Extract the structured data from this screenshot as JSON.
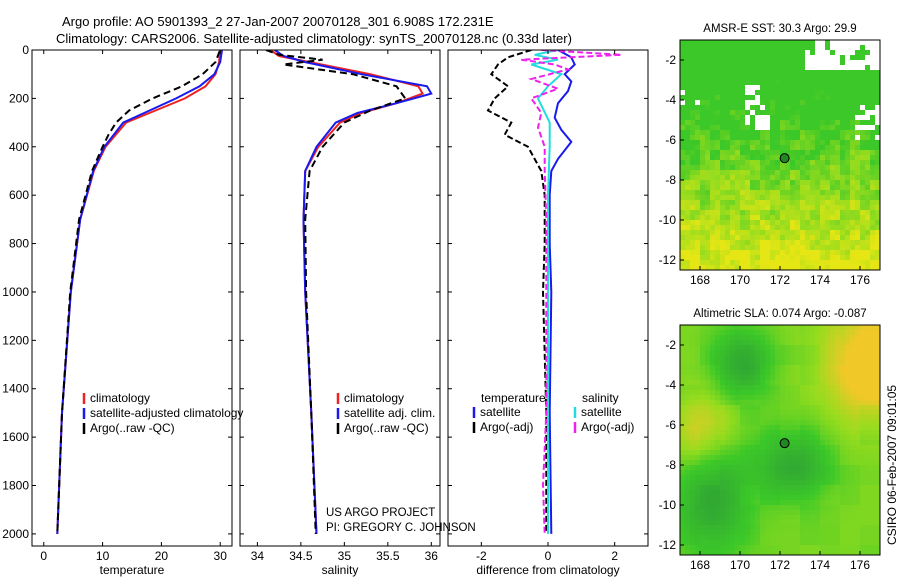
{
  "figure": {
    "title_line1": "Argo profile: AO 5901393_2 27-Jan-2007 20070128_301 6.908S 172.231E",
    "title_line2": "Climatology: CARS2006. Satellite-adjusted climatology: synTS_20070128.nc (0.33d later)",
    "credit": "CSIRO 06-Feb-2007 09:01:05",
    "project_line1": "US ARGO PROJECT",
    "project_line2": "PI: GREGORY C. JOHNSON"
  },
  "colors": {
    "climatology": "#ee2222",
    "satellite": "#1a1aee",
    "argo": "#000000",
    "salinity_satellite": "#22dddd",
    "salinity_argo": "#ee22ee",
    "map_marker": "#228822"
  },
  "chart_data": [
    {
      "type": "line",
      "id": "temperature",
      "xlabel": "temperature",
      "xlim": [
        -2,
        32
      ],
      "ylim": [
        0,
        2050
      ],
      "xticks": [
        0,
        10,
        20,
        30
      ],
      "yticks": [
        0,
        200,
        400,
        600,
        800,
        1000,
        1200,
        1400,
        1600,
        1800,
        2000
      ],
      "xtick_labels": [
        "0",
        "10",
        "20",
        "30"
      ],
      "ytick_labels": [
        "0",
        "200",
        "400",
        "600",
        "800",
        "1000",
        "1200",
        "1400",
        "1600",
        "1800",
        "2000"
      ],
      "legend": [
        "climatology",
        "satellite-adjusted climatology",
        "Argo(..raw -QC)"
      ],
      "series": [
        {
          "name": "climatology",
          "color": "#ee2222",
          "dash": "",
          "depth": [
            0,
            50,
            100,
            150,
            200,
            250,
            300,
            400,
            500,
            700,
            1000,
            1500,
            2000
          ],
          "values": [
            30.0,
            29.8,
            29.2,
            27.5,
            24,
            19,
            14,
            10.5,
            8.5,
            6.2,
            4.6,
            3.1,
            2.3
          ]
        },
        {
          "name": "satellite-adjusted climatology",
          "color": "#1a1aee",
          "dash": "",
          "depth": [
            0,
            50,
            100,
            150,
            200,
            250,
            300,
            400,
            500,
            700,
            1000,
            1500,
            2000
          ],
          "values": [
            30.3,
            30.0,
            29.0,
            26.5,
            22.5,
            18,
            13.5,
            10.3,
            8.4,
            6.2,
            4.6,
            3.1,
            2.3
          ]
        },
        {
          "name": "Argo(..raw -QC)",
          "color": "#000000",
          "dash": "7,4",
          "depth": [
            5,
            50,
            100,
            150,
            200,
            250,
            300,
            350,
            400,
            500,
            700,
            1000,
            1500,
            2000
          ],
          "values": [
            29.9,
            29.2,
            27,
            23.5,
            18.5,
            14.5,
            12.3,
            11.0,
            10.0,
            8.2,
            6.0,
            4.5,
            3.1,
            2.3
          ]
        }
      ]
    },
    {
      "type": "line",
      "id": "salinity",
      "xlabel": "salinity",
      "xlim": [
        33.8,
        36.1
      ],
      "ylim": [
        0,
        2050
      ],
      "xticks": [
        34,
        34.5,
        35,
        35.5,
        36
      ],
      "yticks": [
        0,
        200,
        400,
        600,
        800,
        1000,
        1200,
        1400,
        1600,
        1800,
        2000
      ],
      "xtick_labels": [
        "34",
        "34.5",
        "35",
        "35.5",
        "36"
      ],
      "legend": [
        "climatology",
        "satellite adj. clim.",
        "Argo(..raw -QC)"
      ],
      "series": [
        {
          "name": "climatology",
          "color": "#ee2222",
          "dash": "",
          "depth": [
            0,
            25,
            50,
            100,
            150,
            180,
            220,
            260,
            300,
            400,
            500,
            700,
            1000,
            1500,
            2000
          ],
          "values": [
            34.15,
            34.25,
            34.6,
            35.3,
            35.85,
            35.9,
            35.6,
            35.2,
            34.95,
            34.7,
            34.55,
            34.53,
            34.55,
            34.62,
            34.68
          ]
        },
        {
          "name": "satellite adj. clim.",
          "color": "#1a1aee",
          "dash": "",
          "depth": [
            0,
            25,
            50,
            100,
            150,
            180,
            220,
            260,
            300,
            400,
            500,
            700,
            1000,
            1500,
            2000
          ],
          "values": [
            34.2,
            34.3,
            34.55,
            35.2,
            35.95,
            36.0,
            35.6,
            35.15,
            34.9,
            34.68,
            34.55,
            34.53,
            34.55,
            34.62,
            34.68
          ]
        },
        {
          "name": "Argo(..raw -QC)",
          "color": "#000000",
          "dash": "7,4",
          "depth": [
            0,
            20,
            40,
            60,
            100,
            150,
            200,
            250,
            300,
            400,
            500,
            700,
            1000,
            1500,
            2000
          ],
          "values": [
            34.1,
            34.25,
            34.75,
            34.3,
            35.1,
            35.6,
            35.7,
            35.3,
            35.0,
            34.75,
            34.6,
            34.55,
            34.56,
            34.62,
            34.67
          ]
        }
      ]
    },
    {
      "type": "line",
      "id": "difference",
      "xlabel": "difference from climatology",
      "xlim": [
        -3.0,
        3.0
      ],
      "ylim": [
        0,
        2050
      ],
      "xticks": [
        -2,
        0,
        2
      ],
      "yticks": [
        0,
        200,
        400,
        600,
        800,
        1000,
        1200,
        1400,
        1600,
        1800,
        2000
      ],
      "xtick_labels": [
        "-2",
        "0",
        "2"
      ],
      "legend_left_title": "temperature",
      "legend_left": [
        "satellite",
        "Argo(-adj)"
      ],
      "legend_right_title": "salinity",
      "legend_right": [
        "satellite",
        "Argo(-adj)"
      ],
      "series": [
        {
          "name": "temperature satellite",
          "color": "#1a1aee",
          "dash": "",
          "depth": [
            0,
            30,
            60,
            100,
            130,
            170,
            220,
            280,
            330,
            380,
            450,
            500,
            600,
            800,
            1000,
            1500,
            2000
          ],
          "values": [
            0.3,
            0.7,
            0.8,
            0.5,
            0.7,
            0.6,
            0.3,
            0.2,
            0.4,
            0.7,
            0.3,
            0.1,
            0.05,
            0.05,
            0.1,
            0.05,
            0.1
          ]
        },
        {
          "name": "temperature Argo(-adj)",
          "color": "#000000",
          "dash": "6,3",
          "depth": [
            0,
            30,
            60,
            100,
            150,
            200,
            250,
            300,
            350,
            400,
            500,
            600,
            800,
            1000,
            1500,
            2000
          ],
          "values": [
            -0.5,
            -1.2,
            -1.5,
            -1.7,
            -1.2,
            -1.6,
            -1.8,
            -1.1,
            -1.3,
            -0.6,
            -0.2,
            -0.1,
            -0.1,
            -0.15,
            -0.05,
            -0.05
          ]
        },
        {
          "name": "salinity satellite",
          "color": "#22dddd",
          "dash": "",
          "depth": [
            0,
            20,
            40,
            60,
            100,
            150,
            200,
            300,
            400,
            600,
            1000,
            1500,
            2000
          ],
          "values": [
            0.3,
            -0.4,
            0.3,
            -0.5,
            0.4,
            0.0,
            -0.3,
            0.05,
            0.05,
            0.0,
            0.0,
            0.0,
            0.0
          ]
        },
        {
          "name": "salinity Argo(-adj)",
          "color": "#ee22ee",
          "dash": "6,3",
          "depth": [
            0,
            20,
            40,
            60,
            80,
            120,
            160,
            200,
            260,
            320,
            400,
            500,
            700,
            1000,
            1500,
            1800,
            2000
          ],
          "values": [
            -0.2,
            2.2,
            -0.8,
            0.2,
            0.6,
            -0.5,
            0.3,
            -0.5,
            -0.2,
            -0.3,
            -0.1,
            -0.1,
            -0.05,
            -0.05,
            -0.05,
            -0.15,
            -0.1
          ]
        }
      ]
    },
    {
      "type": "heatmap",
      "id": "sst_map",
      "title": "AMSR-E SST: 30.3 Argo: 29.9",
      "xlim": [
        167,
        177
      ],
      "ylim": [
        -12.5,
        -1
      ],
      "xticks": [
        168,
        170,
        172,
        174,
        176
      ],
      "yticks": [
        -2,
        -4,
        -6,
        -8,
        -10,
        -12
      ],
      "xtick_labels": [
        "168",
        "170",
        "172",
        "174",
        "176"
      ],
      "ytick_labels": [
        "-2",
        "-4",
        "-6",
        "-8",
        "-10",
        "-12"
      ],
      "marker": {
        "lon": 172.231,
        "lat": -6.908
      }
    },
    {
      "type": "heatmap",
      "id": "sla_map",
      "title": "Altimetric SLA: 0.074 Argo: -0.087",
      "xlim": [
        167,
        177
      ],
      "ylim": [
        -12.5,
        -1
      ],
      "xticks": [
        168,
        170,
        172,
        174,
        176
      ],
      "yticks": [
        -2,
        -4,
        -6,
        -8,
        -10,
        -12
      ],
      "xtick_labels": [
        "168",
        "170",
        "172",
        "174",
        "176"
      ],
      "ytick_labels": [
        "-2",
        "-4",
        "-6",
        "-8",
        "-10",
        "-12"
      ],
      "marker": {
        "lon": 172.231,
        "lat": -6.908
      }
    }
  ]
}
